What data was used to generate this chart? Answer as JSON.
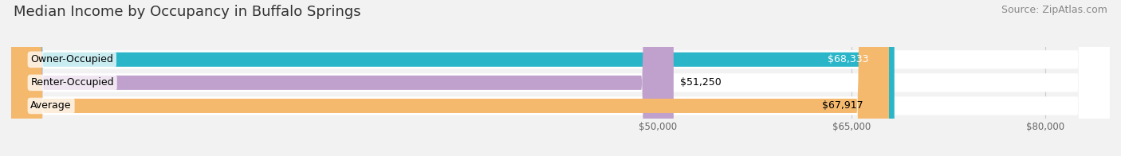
{
  "title": "Median Income by Occupancy in Buffalo Springs",
  "source": "Source: ZipAtlas.com",
  "categories": [
    "Owner-Occupied",
    "Renter-Occupied",
    "Average"
  ],
  "values": [
    68333,
    51250,
    67917
  ],
  "labels": [
    "$68,333",
    "$51,250",
    "$67,917"
  ],
  "bar_colors": [
    "#2bb5c8",
    "#c0a0cc",
    "#f5b96e"
  ],
  "bar_bg_color": "#e8e8e8",
  "label_colors": [
    "white",
    "black",
    "black"
  ],
  "xmin": 0,
  "xmax": 85000,
  "xticks": [
    50000,
    65000,
    80000
  ],
  "xtick_labels": [
    "$50,000",
    "$65,000",
    "$80,000"
  ],
  "title_fontsize": 13,
  "source_fontsize": 9,
  "label_fontsize": 9,
  "category_fontsize": 9,
  "bg_color": "#f2f2f2"
}
